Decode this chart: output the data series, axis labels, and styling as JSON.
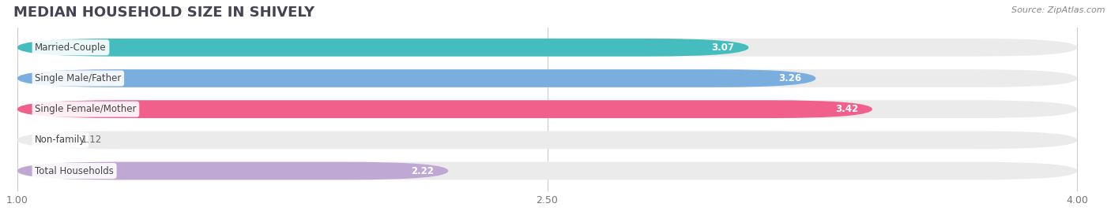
{
  "title": "MEDIAN HOUSEHOLD SIZE IN SHIVELY",
  "source": "Source: ZipAtlas.com",
  "categories": [
    "Married-Couple",
    "Single Male/Father",
    "Single Female/Mother",
    "Non-family",
    "Total Households"
  ],
  "values": [
    3.07,
    3.26,
    3.42,
    1.12,
    2.22
  ],
  "bar_colors": [
    "#45bcbe",
    "#7aaede",
    "#f0608a",
    "#f5cfa0",
    "#c0a8d5"
  ],
  "xmin": 1.0,
  "xmax": 4.0,
  "xticks": [
    1.0,
    2.5,
    4.0
  ],
  "bar_height": 0.58,
  "label_fontsize": 8.5,
  "value_fontsize": 8.5,
  "title_fontsize": 13,
  "background_color": "#ffffff",
  "bar_bg_color": "#ebebeb"
}
